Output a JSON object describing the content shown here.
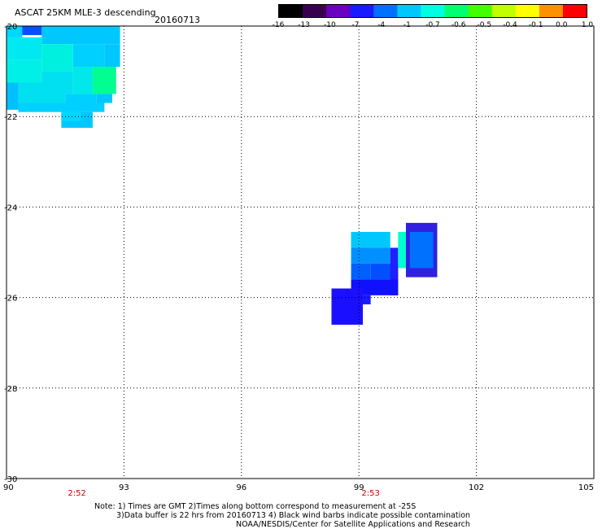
{
  "header": {
    "title": "ASCAT 25KM MLE-3 descending",
    "date": "20160713"
  },
  "colorbar": {
    "labels": [
      "-16",
      "-13",
      "-10",
      "-7",
      "-4",
      "-1",
      "-0.7",
      "-0.6",
      "-0.5",
      "-0.4",
      "-0.1",
      "0.0",
      "1.0"
    ],
    "colors": [
      "#000000",
      "#3a0050",
      "#6a00c0",
      "#1a1aff",
      "#0070ff",
      "#00c8ff",
      "#00ffe0",
      "#00ff70",
      "#40ff00",
      "#c0ff00",
      "#ffff00",
      "#ff9000",
      "#ff0000"
    ]
  },
  "axes": {
    "lat_labels": [
      "-20",
      "-22",
      "-24",
      "-26",
      "-28",
      "-30"
    ],
    "lon_labels": [
      "90",
      "93",
      "96",
      "99",
      "102",
      "105"
    ]
  },
  "time_labels": [
    "2:52",
    "2:53"
  ],
  "chart_data": {
    "type": "heatmap",
    "title": "ASCAT 25KM MLE-3 descending",
    "lon_range": [
      90,
      105
    ],
    "lat_range": [
      -30,
      -20
    ],
    "lon_ticks": [
      90,
      93,
      96,
      99,
      102,
      105
    ],
    "lat_ticks": [
      -20,
      -22,
      -24,
      -26,
      -28,
      -30
    ],
    "grid": true,
    "time_ticks": [
      {
        "lon": 91.8,
        "label": "2:52"
      },
      {
        "lon": 99.3,
        "label": "2:53"
      }
    ],
    "cells": [
      {
        "lon": 90.0,
        "lat": -20.0,
        "w": 0.4,
        "h": 0.25,
        "c": "#00d8ff"
      },
      {
        "lon": 90.4,
        "lat": -20.0,
        "w": 0.5,
        "h": 0.2,
        "c": "#0050ff"
      },
      {
        "lon": 90.9,
        "lat": -20.0,
        "w": 2.0,
        "h": 0.4,
        "c": "#00c8ff"
      },
      {
        "lon": 90.0,
        "lat": -20.25,
        "w": 0.9,
        "h": 0.5,
        "c": "#00e8f0"
      },
      {
        "lon": 90.9,
        "lat": -20.4,
        "w": 0.8,
        "h": 0.6,
        "c": "#00f0e0"
      },
      {
        "lon": 91.7,
        "lat": -20.4,
        "w": 0.8,
        "h": 0.5,
        "c": "#00d0ff"
      },
      {
        "lon": 92.5,
        "lat": -20.4,
        "w": 0.4,
        "h": 0.5,
        "c": "#00c8ff"
      },
      {
        "lon": 92.2,
        "lat": -20.9,
        "w": 0.6,
        "h": 0.6,
        "c": "#00ff90"
      },
      {
        "lon": 91.7,
        "lat": -20.9,
        "w": 0.5,
        "h": 0.6,
        "c": "#00e8e8"
      },
      {
        "lon": 90.0,
        "lat": -20.75,
        "w": 0.9,
        "h": 0.5,
        "c": "#00f0e8"
      },
      {
        "lon": 90.9,
        "lat": -21.0,
        "w": 0.8,
        "h": 0.5,
        "c": "#00e0f0"
      },
      {
        "lon": 91.5,
        "lat": -21.5,
        "w": 0.8,
        "h": 0.3,
        "c": "#00d0ff"
      },
      {
        "lon": 90.0,
        "lat": -21.25,
        "w": 0.3,
        "h": 0.6,
        "c": "#00c0ff"
      },
      {
        "lon": 90.3,
        "lat": -21.25,
        "w": 1.2,
        "h": 0.45,
        "c": "#00e0f0"
      },
      {
        "lon": 90.3,
        "lat": -21.7,
        "w": 2.2,
        "h": 0.2,
        "c": "#00d0ff"
      },
      {
        "lon": 92.3,
        "lat": -21.5,
        "w": 0.4,
        "h": 0.2,
        "c": "#00c8ff"
      },
      {
        "lon": 91.4,
        "lat": -21.9,
        "w": 0.8,
        "h": 0.35,
        "c": "#00c8ff"
      },
      {
        "lon": 91.4,
        "lat": -21.9,
        "w": 0.5,
        "h": 0.2,
        "c": "#00d8ff"
      },
      {
        "lon": 98.8,
        "lat": -24.55,
        "w": 1.0,
        "h": 0.35,
        "c": "#00c8ff"
      },
      {
        "lon": 98.8,
        "lat": -24.9,
        "w": 1.0,
        "h": 0.35,
        "c": "#0090ff"
      },
      {
        "lon": 98.8,
        "lat": -25.25,
        "w": 0.5,
        "h": 0.35,
        "c": "#0060ff"
      },
      {
        "lon": 99.3,
        "lat": -25.25,
        "w": 0.7,
        "h": 0.35,
        "c": "#0050ff"
      },
      {
        "lon": 99.8,
        "lat": -24.9,
        "w": 0.2,
        "h": 1.05,
        "c": "#2020ff"
      },
      {
        "lon": 98.8,
        "lat": -25.6,
        "w": 1.2,
        "h": 0.35,
        "c": "#1010ff"
      },
      {
        "lon": 99.0,
        "lat": -25.95,
        "w": 0.3,
        "h": 0.2,
        "c": "#1a1aff"
      },
      {
        "lon": 98.3,
        "lat": -25.8,
        "w": 0.8,
        "h": 0.8,
        "c": "#1a10ff"
      },
      {
        "lon": 100.0,
        "lat": -24.55,
        "w": 0.2,
        "h": 0.8,
        "c": "#00ffd0"
      },
      {
        "lon": 100.2,
        "lat": -24.35,
        "w": 0.8,
        "h": 1.2,
        "c": "#3020e0"
      },
      {
        "lon": 100.3,
        "lat": -24.55,
        "w": 0.6,
        "h": 0.8,
        "c": "#0070ff"
      }
    ]
  },
  "footer": {
    "note1": "Note: 1) Times are GMT 2)Times along bottom correspond to measurement at -25S",
    "note2": "3)Data buffer is 22 hrs from 20160713 4) Black wind barbs indicate possible contamination",
    "note3": "NOAA/NESDIS/Center for Satellite Applications and Research"
  }
}
